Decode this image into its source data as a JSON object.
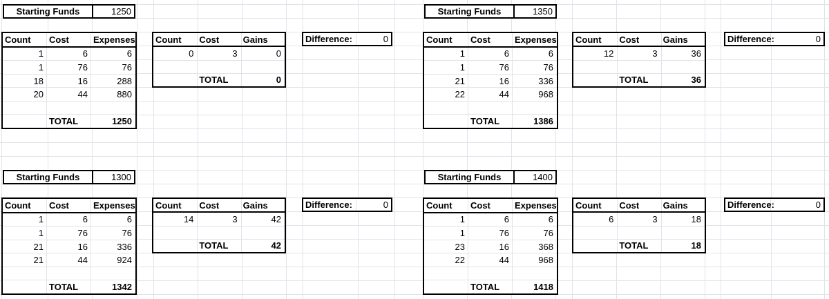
{
  "labels": {
    "starting_funds": "Starting Funds",
    "total": "TOTAL",
    "difference": "Difference:"
  },
  "tables": {
    "expenses_headers": [
      "Count",
      "Cost",
      "Expenses"
    ],
    "gains_headers": [
      "Count",
      "Cost",
      "Gains"
    ]
  },
  "colors": {
    "gridline": "#e2e3ea",
    "border": "#000000",
    "background": "#ffffff",
    "text": "#000000"
  },
  "quadrants": [
    {
      "name": "top-left",
      "starting_funds": "1250",
      "expenses": {
        "rows": [
          [
            "1",
            "6",
            "6"
          ],
          [
            "1",
            "76",
            "76"
          ],
          [
            "18",
            "16",
            "288"
          ],
          [
            "20",
            "44",
            "880"
          ]
        ],
        "total": "1250"
      },
      "gains": {
        "rows": [
          [
            "0",
            "3",
            "0"
          ]
        ],
        "total": "0"
      },
      "difference": "0"
    },
    {
      "name": "top-right",
      "starting_funds": "1350",
      "expenses": {
        "rows": [
          [
            "1",
            "6",
            "6"
          ],
          [
            "1",
            "76",
            "76"
          ],
          [
            "21",
            "16",
            "336"
          ],
          [
            "22",
            "44",
            "968"
          ]
        ],
        "total": "1386"
      },
      "gains": {
        "rows": [
          [
            "12",
            "3",
            "36"
          ]
        ],
        "total": "36"
      },
      "difference": "0"
    },
    {
      "name": "bottom-left",
      "starting_funds": "1300",
      "expenses": {
        "rows": [
          [
            "1",
            "6",
            "6"
          ],
          [
            "1",
            "76",
            "76"
          ],
          [
            "21",
            "16",
            "336"
          ],
          [
            "21",
            "44",
            "924"
          ]
        ],
        "total": "1342"
      },
      "gains": {
        "rows": [
          [
            "14",
            "3",
            "42"
          ]
        ],
        "total": "42"
      },
      "difference": "0"
    },
    {
      "name": "bottom-right",
      "starting_funds": "1400",
      "expenses": {
        "rows": [
          [
            "1",
            "6",
            "6"
          ],
          [
            "1",
            "76",
            "76"
          ],
          [
            "23",
            "16",
            "368"
          ],
          [
            "22",
            "44",
            "968"
          ]
        ],
        "total": "1418"
      },
      "gains": {
        "rows": [
          [
            "6",
            "3",
            "18"
          ]
        ],
        "total": "18"
      },
      "difference": "0"
    }
  ]
}
